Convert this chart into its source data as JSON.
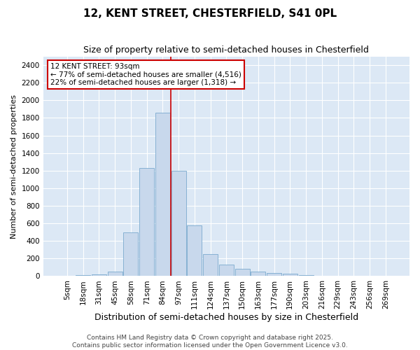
{
  "title1": "12, KENT STREET, CHESTERFIELD, S41 0PL",
  "title2": "Size of property relative to semi-detached houses in Chesterfield",
  "xlabel": "Distribution of semi-detached houses by size in Chesterfield",
  "ylabel": "Number of semi-detached properties",
  "bin_labels": [
    "5sqm",
    "18sqm",
    "31sqm",
    "45sqm",
    "58sqm",
    "71sqm",
    "84sqm",
    "97sqm",
    "111sqm",
    "124sqm",
    "137sqm",
    "150sqm",
    "163sqm",
    "177sqm",
    "190sqm",
    "203sqm",
    "216sqm",
    "229sqm",
    "243sqm",
    "256sqm",
    "269sqm"
  ],
  "bar_values": [
    5,
    12,
    22,
    52,
    500,
    1230,
    1860,
    1200,
    580,
    250,
    130,
    80,
    50,
    38,
    25,
    12,
    7,
    5,
    3,
    2,
    1
  ],
  "bar_color": "#c8d8ec",
  "bar_edge_color": "#7aaace",
  "vline_color": "#cc0000",
  "annotation_box_facecolor": "white",
  "annotation_box_edgecolor": "#cc0000",
  "ylim": [
    0,
    2500
  ],
  "yticks": [
    0,
    200,
    400,
    600,
    800,
    1000,
    1200,
    1400,
    1600,
    1800,
    2000,
    2200,
    2400
  ],
  "bg_color": "#dce8f5",
  "footer_text": "Contains HM Land Registry data © Crown copyright and database right 2025.\nContains public sector information licensed under the Open Government Licence v3.0.",
  "title1_fontsize": 11,
  "title2_fontsize": 9,
  "xlabel_fontsize": 9,
  "ylabel_fontsize": 8,
  "tick_fontsize": 7.5,
  "footer_fontsize": 6.5,
  "annotation_fontsize": 7.5
}
